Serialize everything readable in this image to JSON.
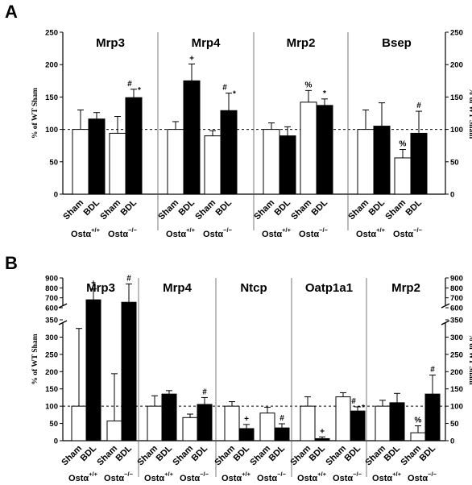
{
  "chart_data": [
    {
      "panel": "A",
      "type": "bar",
      "ylabel": "% of WT Sham",
      "ylabel_right": "% of WT Sham",
      "ylim": [
        0,
        250
      ],
      "yticks": [
        0,
        50,
        100,
        150,
        200,
        250
      ],
      "reference_line": 100,
      "groups": [
        {
          "title": "Mrp3",
          "bars": [
            {
              "label": "Sham",
              "genotype": "+/+",
              "fill": "white",
              "value": 100,
              "err": 30,
              "ann": ""
            },
            {
              "label": "BDL",
              "genotype": "+/+",
              "fill": "black",
              "value": 116,
              "err": 10,
              "ann": ""
            },
            {
              "label": "Sham",
              "genotype": "−/−",
              "fill": "white",
              "value": 94,
              "err": 26,
              "ann": ""
            },
            {
              "label": "BDL",
              "genotype": "−/−",
              "fill": "black",
              "value": 149,
              "err": 13,
              "ann": "# *"
            }
          ]
        },
        {
          "title": "Mrp4",
          "bars": [
            {
              "label": "Sham",
              "genotype": "+/+",
              "fill": "white",
              "value": 100,
              "err": 12,
              "ann": ""
            },
            {
              "label": "BDL",
              "genotype": "+/+",
              "fill": "black",
              "value": 175,
              "err": 26,
              "ann": "+"
            },
            {
              "label": "Sham",
              "genotype": "−/−",
              "fill": "white",
              "value": 90,
              "err": 8,
              "ann": ""
            },
            {
              "label": "BDL",
              "genotype": "−/−",
              "fill": "black",
              "value": 129,
              "err": 27,
              "ann": "# *"
            }
          ]
        },
        {
          "title": "Mrp2",
          "bars": [
            {
              "label": "Sham",
              "genotype": "+/+",
              "fill": "white",
              "value": 100,
              "err": 10,
              "ann": ""
            },
            {
              "label": "BDL",
              "genotype": "+/+",
              "fill": "black",
              "value": 90,
              "err": 14,
              "ann": ""
            },
            {
              "label": "Sham",
              "genotype": "−/−",
              "fill": "white",
              "value": 142,
              "err": 18,
              "ann": "%"
            },
            {
              "label": "BDL",
              "genotype": "−/−",
              "fill": "black",
              "value": 137,
              "err": 10,
              "ann": "*"
            }
          ]
        },
        {
          "title": "Bsep",
          "bars": [
            {
              "label": "Sham",
              "genotype": "+/+",
              "fill": "white",
              "value": 100,
              "err": 30,
              "ann": ""
            },
            {
              "label": "BDL",
              "genotype": "+/+",
              "fill": "black",
              "value": 105,
              "err": 36,
              "ann": ""
            },
            {
              "label": "Sham",
              "genotype": "−/−",
              "fill": "white",
              "value": 56,
              "err": 13,
              "ann": "%"
            },
            {
              "label": "BDL",
              "genotype": "−/−",
              "fill": "black",
              "value": 94,
              "err": 34,
              "ann": "#"
            }
          ]
        }
      ]
    },
    {
      "panel": "B",
      "type": "bar",
      "ylabel": "% of WT Sham",
      "ylabel_right": "% of WT Sham",
      "ylim": [
        0,
        900
      ],
      "axis_break": [
        350,
        600
      ],
      "yticks": [
        0,
        50,
        100,
        150,
        200,
        250,
        300,
        350,
        600,
        700,
        800,
        900
      ],
      "reference_line": 100,
      "groups": [
        {
          "title": "Mrp3",
          "bars": [
            {
              "label": "Sham",
              "genotype": "+/+",
              "fill": "white",
              "value": 100,
              "err": 225,
              "ann": ""
            },
            {
              "label": "BDL",
              "genotype": "+/+",
              "fill": "black",
              "value": 680,
              "err": 110,
              "ann": "+"
            },
            {
              "label": "Sham",
              "genotype": "−/−",
              "fill": "white",
              "value": 57,
              "err": 137,
              "ann": ""
            },
            {
              "label": "BDL",
              "genotype": "−/−",
              "fill": "black",
              "value": 655,
              "err": 185,
              "ann": "#"
            }
          ]
        },
        {
          "title": "Mrp4",
          "bars": [
            {
              "label": "Sham",
              "genotype": "+/+",
              "fill": "white",
              "value": 100,
              "err": 30,
              "ann": ""
            },
            {
              "label": "BDL",
              "genotype": "+/+",
              "fill": "black",
              "value": 135,
              "err": 10,
              "ann": ""
            },
            {
              "label": "Sham",
              "genotype": "−/−",
              "fill": "white",
              "value": 67,
              "err": 10,
              "ann": ""
            },
            {
              "label": "BDL",
              "genotype": "−/−",
              "fill": "black",
              "value": 105,
              "err": 20,
              "ann": "#"
            }
          ]
        },
        {
          "title": "Ntcp",
          "bars": [
            {
              "label": "Sham",
              "genotype": "+/+",
              "fill": "white",
              "value": 100,
              "err": 13,
              "ann": ""
            },
            {
              "label": "BDL",
              "genotype": "+/+",
              "fill": "black",
              "value": 35,
              "err": 12,
              "ann": "+"
            },
            {
              "label": "Sham",
              "genotype": "−/−",
              "fill": "white",
              "value": 80,
              "err": 17,
              "ann": ""
            },
            {
              "label": "BDL",
              "genotype": "−/−",
              "fill": "black",
              "value": 37,
              "err": 12,
              "ann": "#"
            }
          ]
        },
        {
          "title": "Oatp1a1",
          "bars": [
            {
              "label": "Sham",
              "genotype": "+/+",
              "fill": "white",
              "value": 100,
              "err": 27,
              "ann": ""
            },
            {
              "label": "BDL",
              "genotype": "+/+",
              "fill": "black",
              "value": 6,
              "err": 5,
              "ann": "+"
            },
            {
              "label": "Sham",
              "genotype": "−/−",
              "fill": "white",
              "value": 127,
              "err": 12,
              "ann": ""
            },
            {
              "label": "BDL",
              "genotype": "−/−",
              "fill": "black",
              "value": 86,
              "err": 12,
              "ann": "# *"
            }
          ]
        },
        {
          "title": "Mrp2",
          "bars": [
            {
              "label": "Sham",
              "genotype": "+/+",
              "fill": "white",
              "value": 100,
              "err": 17,
              "ann": ""
            },
            {
              "label": "BDL",
              "genotype": "+/+",
              "fill": "black",
              "value": 110,
              "err": 27,
              "ann": ""
            },
            {
              "label": "Sham",
              "genotype": "−/−",
              "fill": "white",
              "value": 23,
              "err": 20,
              "ann": "%"
            },
            {
              "label": "BDL",
              "genotype": "−/−",
              "fill": "black",
              "value": 135,
              "err": 55,
              "ann": "#"
            }
          ]
        }
      ]
    }
  ],
  "genotype_label": "Ostα"
}
